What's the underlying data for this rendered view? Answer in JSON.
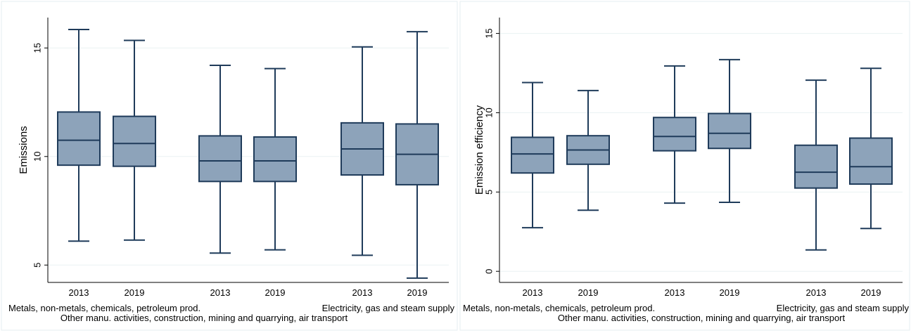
{
  "chart_data": [
    {
      "type": "box",
      "ylabel": "Emissions",
      "ylim": [
        4.2,
        16.4
      ],
      "yticks": [
        5,
        10,
        15
      ],
      "grid": true,
      "box_color": "#8da3ba",
      "line_color": "#1f3b5a",
      "groups": [
        {
          "label": "Metals, non-metals, chemicals, petroleum prod.",
          "boxes": [
            {
              "label": "2013",
              "min": 6.1,
              "q1": 9.6,
              "median": 10.75,
              "q3": 12.05,
              "max": 15.85
            },
            {
              "label": "2019",
              "min": 6.15,
              "q1": 9.55,
              "median": 10.6,
              "q3": 11.85,
              "max": 15.35
            }
          ]
        },
        {
          "label": "Other manu. activities, construction, mining and quarrying, air transport",
          "boxes": [
            {
              "label": "2013",
              "min": 5.55,
              "q1": 8.85,
              "median": 9.8,
              "q3": 10.95,
              "max": 14.2
            },
            {
              "label": "2019",
              "min": 5.7,
              "q1": 8.85,
              "median": 9.8,
              "q3": 10.9,
              "max": 14.05
            }
          ]
        },
        {
          "label": "Electricity, gas and steam supply",
          "boxes": [
            {
              "label": "2013",
              "min": 5.45,
              "q1": 9.15,
              "median": 10.35,
              "q3": 11.55,
              "max": 15.05
            },
            {
              "label": "2019",
              "min": 4.4,
              "q1": 8.7,
              "median": 10.1,
              "q3": 11.5,
              "max": 15.75
            }
          ]
        }
      ]
    },
    {
      "type": "box",
      "ylabel": "Emission efficiency",
      "ylim": [
        -0.7,
        16.0
      ],
      "yticks": [
        0,
        5,
        10,
        15
      ],
      "grid": true,
      "box_color": "#8da3ba",
      "line_color": "#1f3b5a",
      "groups": [
        {
          "label": "Metals, non-metals, chemicals, petroleum prod.",
          "boxes": [
            {
              "label": "2013",
              "min": 2.75,
              "q1": 6.2,
              "median": 7.4,
              "q3": 8.45,
              "max": 11.9
            },
            {
              "label": "2019",
              "min": 3.85,
              "q1": 6.75,
              "median": 7.65,
              "q3": 8.55,
              "max": 11.4
            }
          ]
        },
        {
          "label": "Other manu. activities, construction, mining and quarrying, air transport",
          "boxes": [
            {
              "label": "2013",
              "min": 4.3,
              "q1": 7.6,
              "median": 8.5,
              "q3": 9.7,
              "max": 12.95
            },
            {
              "label": "2019",
              "min": 4.35,
              "q1": 7.75,
              "median": 8.7,
              "q3": 9.95,
              "max": 13.35
            }
          ]
        },
        {
          "label": "Electricity, gas and steam supply",
          "boxes": [
            {
              "label": "2013",
              "min": 1.35,
              "q1": 5.25,
              "median": 6.25,
              "q3": 7.95,
              "max": 12.05
            },
            {
              "label": "2019",
              "min": 2.7,
              "q1": 5.5,
              "median": 6.6,
              "q3": 8.4,
              "max": 12.8
            }
          ]
        }
      ]
    }
  ]
}
